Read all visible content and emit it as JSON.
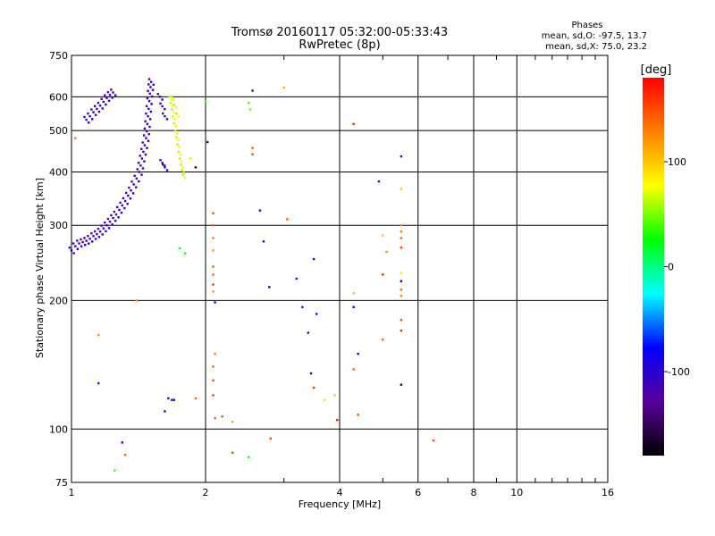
{
  "chart_data": {
    "type": "scatter",
    "title": "Tromsø 20160117 05:32:00-05:33:43",
    "subtitle": "RwPretec (8p)",
    "xlabel": "Frequency [MHz]",
    "ylabel": "Stationary phase Virtual Height [km]",
    "xscale": "log",
    "yscale": "log",
    "xlim": [
      1,
      16
    ],
    "ylim": [
      75,
      750
    ],
    "xticks": [
      1,
      2,
      4,
      6,
      8,
      10,
      16
    ],
    "yticks": [
      75,
      100,
      200,
      300,
      400,
      500,
      600,
      750
    ],
    "grid": true,
    "phases": {
      "heading": "Phases",
      "line1": "mean, sd,O: -97.5, 13.7",
      "line2": "mean, sd,X:  75.0, 23.2"
    },
    "colorbar": {
      "label": "[deg]",
      "range": [
        -180,
        180
      ],
      "ticks": [
        100,
        0,
        -100
      ],
      "palette": [
        "#000000",
        "#5a009a",
        "#0000ff",
        "#00ffff",
        "#00ff00",
        "#ffff00",
        "#ff8000",
        "#ff0000"
      ]
    },
    "o_trace": [
      [
        1.0,
        262
      ],
      [
        1.02,
        268
      ],
      [
        1.04,
        272
      ],
      [
        1.06,
        274
      ],
      [
        1.08,
        276
      ],
      [
        1.1,
        279
      ],
      [
        1.12,
        283
      ],
      [
        1.14,
        286
      ],
      [
        1.16,
        290
      ],
      [
        1.18,
        295
      ],
      [
        1.2,
        300
      ],
      [
        1.22,
        306
      ],
      [
        1.24,
        312
      ],
      [
        1.26,
        318
      ],
      [
        1.28,
        326
      ],
      [
        1.3,
        334
      ],
      [
        1.32,
        342
      ],
      [
        1.34,
        352
      ],
      [
        1.36,
        362
      ],
      [
        1.38,
        374
      ],
      [
        1.4,
        386
      ],
      [
        1.42,
        400
      ],
      [
        1.43,
        414
      ],
      [
        1.44,
        430
      ],
      [
        1.45,
        446
      ],
      [
        1.46,
        462
      ],
      [
        1.47,
        480
      ],
      [
        1.475,
        498
      ],
      [
        1.48,
        518
      ],
      [
        1.485,
        540
      ],
      [
        1.49,
        562
      ],
      [
        1.495,
        586
      ],
      [
        1.5,
        610
      ],
      [
        1.505,
        632
      ],
      [
        1.51,
        650
      ],
      [
        1.08,
        530
      ],
      [
        1.1,
        540
      ],
      [
        1.12,
        552
      ],
      [
        1.14,
        562
      ],
      [
        1.16,
        572
      ],
      [
        1.18,
        584
      ],
      [
        1.2,
        596
      ],
      [
        1.22,
        606
      ],
      [
        1.24,
        614
      ],
      [
        1.58,
        600
      ],
      [
        1.6,
        570
      ],
      [
        1.62,
        540
      ],
      [
        1.6,
        420
      ],
      [
        1.62,
        410
      ]
    ],
    "x_trace": [
      [
        1.66,
        600
      ],
      [
        1.67,
        580
      ],
      [
        1.68,
        560
      ],
      [
        1.69,
        540
      ],
      [
        1.7,
        520
      ],
      [
        1.71,
        500
      ],
      [
        1.72,
        482
      ],
      [
        1.73,
        464
      ],
      [
        1.74,
        446
      ],
      [
        1.75,
        430
      ],
      [
        1.76,
        416
      ],
      [
        1.77,
        404
      ],
      [
        1.78,
        394
      ],
      [
        1.68,
        600
      ],
      [
        1.7,
        575
      ],
      [
        1.72,
        548
      ]
    ],
    "scatter": [
      {
        "x": 1.02,
        "y": 480,
        "phase": 130
      },
      {
        "x": 1.4,
        "y": 200,
        "phase": 120
      },
      {
        "x": 1.75,
        "y": 265,
        "phase": 10
      },
      {
        "x": 1.8,
        "y": 258,
        "phase": 30
      },
      {
        "x": 1.85,
        "y": 430,
        "phase": 90
      },
      {
        "x": 1.9,
        "y": 410,
        "phase": -160
      },
      {
        "x": 2.0,
        "y": 585,
        "phase": 40
      },
      {
        "x": 2.02,
        "y": 470,
        "phase": -140
      },
      {
        "x": 2.08,
        "y": 320,
        "phase": 150
      },
      {
        "x": 2.08,
        "y": 300,
        "phase": 140
      },
      {
        "x": 2.08,
        "y": 280,
        "phase": 130
      },
      {
        "x": 2.08,
        "y": 262,
        "phase": 120
      },
      {
        "x": 2.08,
        "y": 240,
        "phase": 150
      },
      {
        "x": 2.08,
        "y": 230,
        "phase": 140
      },
      {
        "x": 2.08,
        "y": 218,
        "phase": 160
      },
      {
        "x": 2.08,
        "y": 210,
        "phase": 120
      },
      {
        "x": 2.1,
        "y": 198,
        "phase": -110
      },
      {
        "x": 2.1,
        "y": 150,
        "phase": 130
      },
      {
        "x": 2.08,
        "y": 140,
        "phase": 140
      },
      {
        "x": 2.08,
        "y": 130,
        "phase": 150
      },
      {
        "x": 2.08,
        "y": 120,
        "phase": 160
      },
      {
        "x": 2.1,
        "y": 106,
        "phase": 140
      },
      {
        "x": 2.18,
        "y": 107,
        "phase": 150
      },
      {
        "x": 2.3,
        "y": 104,
        "phase": 110
      },
      {
        "x": 2.3,
        "y": 88,
        "phase": 150
      },
      {
        "x": 2.5,
        "y": 86,
        "phase": 30
      },
      {
        "x": 2.5,
        "y": 580,
        "phase": 40
      },
      {
        "x": 2.52,
        "y": 560,
        "phase": 50
      },
      {
        "x": 2.55,
        "y": 455,
        "phase": 140
      },
      {
        "x": 2.55,
        "y": 440,
        "phase": 150
      },
      {
        "x": 2.55,
        "y": 620,
        "phase": -120
      },
      {
        "x": 2.65,
        "y": 325,
        "phase": -100
      },
      {
        "x": 2.7,
        "y": 275,
        "phase": -90
      },
      {
        "x": 2.78,
        "y": 215,
        "phase": -150
      },
      {
        "x": 2.8,
        "y": 95,
        "phase": 150
      },
      {
        "x": 3.0,
        "y": 630,
        "phase": 110
      },
      {
        "x": 3.05,
        "y": 310,
        "phase": 140
      },
      {
        "x": 3.2,
        "y": 225,
        "phase": -130
      },
      {
        "x": 3.3,
        "y": 193,
        "phase": -130
      },
      {
        "x": 3.4,
        "y": 168,
        "phase": -90
      },
      {
        "x": 3.5,
        "y": 250,
        "phase": -80
      },
      {
        "x": 3.55,
        "y": 186,
        "phase": -110
      },
      {
        "x": 3.45,
        "y": 135,
        "phase": -100
      },
      {
        "x": 3.5,
        "y": 125,
        "phase": 160
      },
      {
        "x": 3.7,
        "y": 117,
        "phase": 90
      },
      {
        "x": 3.9,
        "y": 120,
        "phase": 100
      },
      {
        "x": 3.95,
        "y": 105,
        "phase": 170
      },
      {
        "x": 4.3,
        "y": 518,
        "phase": 170
      },
      {
        "x": 4.3,
        "y": 208,
        "phase": 100
      },
      {
        "x": 4.3,
        "y": 193,
        "phase": -80
      },
      {
        "x": 4.4,
        "y": 150,
        "phase": -100
      },
      {
        "x": 4.3,
        "y": 138,
        "phase": 140
      },
      {
        "x": 4.4,
        "y": 108,
        "phase": 150
      },
      {
        "x": 4.9,
        "y": 380,
        "phase": -120
      },
      {
        "x": 5.0,
        "y": 284,
        "phase": 100
      },
      {
        "x": 5.0,
        "y": 230,
        "phase": 170
      },
      {
        "x": 5.0,
        "y": 162,
        "phase": 140
      },
      {
        "x": 5.1,
        "y": 260,
        "phase": 120
      },
      {
        "x": 5.5,
        "y": 435,
        "phase": -100
      },
      {
        "x": 5.5,
        "y": 365,
        "phase": 100
      },
      {
        "x": 5.5,
        "y": 300,
        "phase": 120
      },
      {
        "x": 5.5,
        "y": 290,
        "phase": 130
      },
      {
        "x": 5.5,
        "y": 280,
        "phase": 140
      },
      {
        "x": 5.5,
        "y": 266,
        "phase": 150
      },
      {
        "x": 5.5,
        "y": 232,
        "phase": 90
      },
      {
        "x": 5.5,
        "y": 222,
        "phase": -160
      },
      {
        "x": 5.5,
        "y": 212,
        "phase": 140
      },
      {
        "x": 5.5,
        "y": 205,
        "phase": 130
      },
      {
        "x": 5.5,
        "y": 180,
        "phase": 150
      },
      {
        "x": 5.5,
        "y": 170,
        "phase": 170
      },
      {
        "x": 5.5,
        "y": 127,
        "phase": -160
      },
      {
        "x": 6.5,
        "y": 94,
        "phase": 150
      },
      {
        "x": 1.15,
        "y": 128,
        "phase": -70
      },
      {
        "x": 1.15,
        "y": 166,
        "phase": 120
      },
      {
        "x": 1.3,
        "y": 93,
        "phase": -110
      },
      {
        "x": 1.32,
        "y": 87,
        "phase": 140
      },
      {
        "x": 1.25,
        "y": 80,
        "phase": 40
      },
      {
        "x": 1.62,
        "y": 110,
        "phase": -110
      },
      {
        "x": 1.65,
        "y": 118,
        "phase": -130
      },
      {
        "x": 1.68,
        "y": 117,
        "phase": -120
      },
      {
        "x": 1.7,
        "y": 117,
        "phase": -110
      },
      {
        "x": 1.9,
        "y": 118,
        "phase": 140
      }
    ]
  }
}
